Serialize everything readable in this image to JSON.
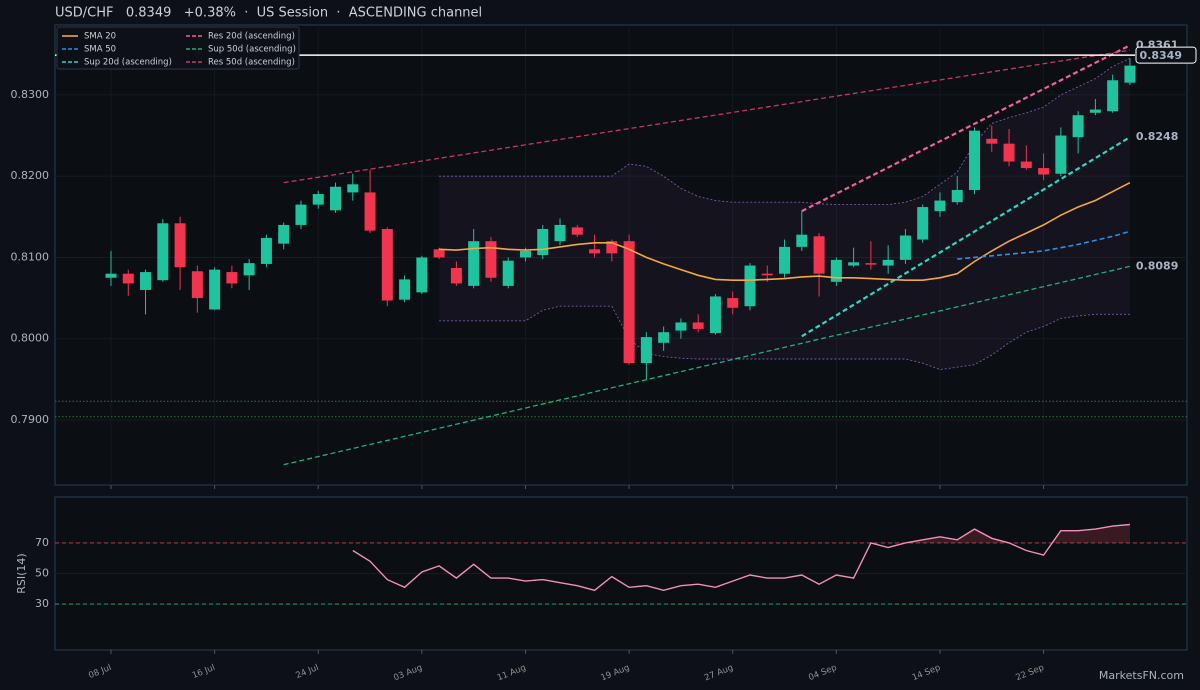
{
  "chart_data": [
    {
      "type": "candlestick",
      "title": "USD/CHF   0.8349   +0.38%  ·  US Session  ·  ASCENDING channel",
      "categories": [
        "08 Jul",
        null,
        null,
        null,
        null,
        null,
        "16 Jul",
        null,
        null,
        null,
        null,
        null,
        "24 Jul",
        null,
        null,
        null,
        null,
        null,
        "03 Aug",
        null,
        null,
        null,
        null,
        null,
        "11 Aug",
        null,
        null,
        null,
        null,
        null,
        "19 Aug",
        null,
        null,
        null,
        null,
        null,
        "27 Aug",
        null,
        null,
        null,
        null,
        null,
        "04 Sep",
        null,
        null,
        null,
        null,
        null,
        "14 Sep",
        null,
        null,
        null,
        null,
        null,
        "22 Sep",
        null,
        null,
        null,
        null,
        null
      ],
      "open": [
        0.8075,
        0.808,
        0.806,
        0.8072,
        0.8142,
        0.8083,
        0.8036,
        0.8082,
        0.8078,
        0.8092,
        0.8117,
        0.814,
        0.8165,
        0.8158,
        0.818,
        0.818,
        0.8135,
        0.8048,
        0.8057,
        0.811,
        0.8087,
        0.8065,
        0.812,
        0.8065,
        0.81,
        0.8103,
        0.812,
        0.8137,
        0.811,
        0.812,
        0.812,
        0.797,
        0.7995,
        0.801,
        0.802,
        0.8007,
        0.805,
        0.804,
        0.808,
        0.808,
        0.8113,
        0.8126,
        0.807,
        0.809,
        0.8093,
        0.809,
        0.8097,
        0.8122,
        0.8157,
        0.8168,
        0.8183,
        0.8246,
        0.824,
        0.8218,
        0.821,
        0.8203,
        0.8248,
        0.8278,
        0.828,
        0.8315
      ],
      "high": [
        0.8108,
        0.8085,
        0.8085,
        0.8147,
        0.815,
        0.809,
        0.8088,
        0.809,
        0.8098,
        0.8128,
        0.8143,
        0.817,
        0.8182,
        0.8192,
        0.8203,
        0.8208,
        0.8137,
        0.8078,
        0.8102,
        0.8112,
        0.8095,
        0.8135,
        0.8125,
        0.81,
        0.8112,
        0.814,
        0.8148,
        0.814,
        0.8128,
        0.8122,
        0.8128,
        0.8008,
        0.8015,
        0.8025,
        0.803,
        0.8055,
        0.8058,
        0.8093,
        0.809,
        0.8122,
        0.8157,
        0.813,
        0.81,
        0.8112,
        0.812,
        0.8115,
        0.8135,
        0.8165,
        0.818,
        0.82,
        0.826,
        0.8262,
        0.8258,
        0.8238,
        0.8228,
        0.826,
        0.828,
        0.8295,
        0.8325,
        0.8345
      ],
      "low": [
        0.8065,
        0.8053,
        0.803,
        0.807,
        0.806,
        0.8032,
        0.8035,
        0.8062,
        0.806,
        0.8088,
        0.811,
        0.8135,
        0.816,
        0.8155,
        0.817,
        0.813,
        0.804,
        0.8045,
        0.8055,
        0.8098,
        0.8065,
        0.8062,
        0.807,
        0.8062,
        0.8095,
        0.8098,
        0.8115,
        0.8125,
        0.81,
        0.8095,
        0.7968,
        0.795,
        0.7985,
        0.8,
        0.8008,
        0.8005,
        0.803,
        0.8035,
        0.807,
        0.8075,
        0.8108,
        0.8052,
        0.8065,
        0.8088,
        0.8085,
        0.808,
        0.8092,
        0.8118,
        0.815,
        0.8165,
        0.8178,
        0.823,
        0.8212,
        0.8208,
        0.8195,
        0.82,
        0.8228,
        0.8275,
        0.8278,
        0.8312
      ],
      "close": [
        0.808,
        0.8068,
        0.8082,
        0.8142,
        0.8088,
        0.805,
        0.8085,
        0.8068,
        0.8093,
        0.8124,
        0.814,
        0.8165,
        0.8178,
        0.8187,
        0.819,
        0.8133,
        0.8047,
        0.8073,
        0.81,
        0.81,
        0.8068,
        0.812,
        0.8075,
        0.8096,
        0.8108,
        0.8135,
        0.814,
        0.8128,
        0.8105,
        0.8105,
        0.797,
        0.8002,
        0.8008,
        0.802,
        0.8012,
        0.8052,
        0.8038,
        0.809,
        0.8078,
        0.8113,
        0.8128,
        0.808,
        0.8097,
        0.8094,
        0.8092,
        0.8097,
        0.8127,
        0.8162,
        0.817,
        0.8183,
        0.8256,
        0.824,
        0.8218,
        0.821,
        0.8202,
        0.825,
        0.8275,
        0.8282,
        0.8318,
        0.8336
      ],
      "up_color": "#1fc39e",
      "down_color": "#f2344f",
      "band": {
        "color": "#7a5aa8",
        "upper": [
          null,
          null,
          null,
          null,
          null,
          null,
          null,
          null,
          null,
          null,
          null,
          null,
          null,
          null,
          null,
          null,
          null,
          null,
          null,
          0.82,
          0.82,
          0.82,
          0.82,
          0.82,
          0.82,
          0.82,
          0.82,
          0.82,
          0.82,
          0.82,
          0.8215,
          0.8212,
          0.82,
          0.8185,
          0.8175,
          0.817,
          0.8168,
          0.8168,
          0.8168,
          0.8168,
          0.8168,
          0.8166,
          0.8165,
          0.8165,
          0.8165,
          0.8165,
          0.8168,
          0.8175,
          0.819,
          0.8205,
          0.824,
          0.8265,
          0.8272,
          0.8278,
          0.8285,
          0.83,
          0.831,
          0.832,
          0.8335,
          0.8345
        ],
        "lower": [
          null,
          null,
          null,
          null,
          null,
          null,
          null,
          null,
          null,
          null,
          null,
          null,
          null,
          null,
          null,
          null,
          null,
          null,
          null,
          0.8022,
          0.8022,
          0.8022,
          0.8022,
          0.8022,
          0.8022,
          0.8035,
          0.804,
          0.804,
          0.804,
          0.804,
          0.8,
          0.7982,
          0.7978,
          0.7976,
          0.7975,
          0.7975,
          0.7975,
          0.7975,
          0.7975,
          0.7975,
          0.7975,
          0.7975,
          0.7975,
          0.7975,
          0.7975,
          0.7975,
          0.7975,
          0.797,
          0.7962,
          0.7965,
          0.7968,
          0.798,
          0.7995,
          0.8008,
          0.8015,
          0.8025,
          0.8028,
          0.803,
          0.803,
          0.803
        ]
      },
      "series": [
        {
          "name": "SMA 20",
          "color": "#f5a742",
          "values": [
            null,
            null,
            null,
            null,
            null,
            null,
            null,
            null,
            null,
            null,
            null,
            null,
            null,
            null,
            null,
            null,
            null,
            null,
            null,
            0.811,
            0.8109,
            0.8111,
            0.8112,
            0.811,
            0.8109,
            0.811,
            0.8113,
            0.8116,
            0.8118,
            0.8118,
            0.811,
            0.81,
            0.8092,
            0.8085,
            0.8078,
            0.8073,
            0.8072,
            0.8072,
            0.8073,
            0.8074,
            0.8076,
            0.8077,
            0.8075,
            0.8075,
            0.8074,
            0.8073,
            0.8072,
            0.8072,
            0.8075,
            0.808,
            0.8095,
            0.8108,
            0.812,
            0.813,
            0.814,
            0.8152,
            0.8162,
            0.817,
            0.8181,
            0.8192
          ]
        },
        {
          "name": "SMA 50",
          "color": "#2d8fe6",
          "dash": true,
          "values": [
            null,
            null,
            null,
            null,
            null,
            null,
            null,
            null,
            null,
            null,
            null,
            null,
            null,
            null,
            null,
            null,
            null,
            null,
            null,
            null,
            null,
            null,
            null,
            null,
            null,
            null,
            null,
            null,
            null,
            null,
            null,
            null,
            null,
            null,
            null,
            null,
            null,
            null,
            null,
            null,
            null,
            null,
            null,
            null,
            null,
            null,
            null,
            null,
            null,
            0.8098,
            0.81,
            0.8102,
            0.8104,
            0.8106,
            0.8108,
            0.8112,
            0.8116,
            0.8121,
            0.8126,
            0.8132
          ]
        }
      ],
      "trendlines": [
        {
          "name": "Sup 20d (ascending)",
          "color": "#2fd6c0",
          "width": 2.2,
          "x": [
            40,
            59
          ],
          "values": [
            0.8003,
            0.8248
          ],
          "labeled": true
        },
        {
          "name": "Res 20d (ascending)",
          "color": "#f0609a",
          "width": 2.2,
          "x": [
            40,
            59
          ],
          "values": [
            0.8157,
            0.8361
          ],
          "labeled": true
        },
        {
          "name": "Sup 50d (ascending)",
          "color": "#22b07a",
          "width": 1.3,
          "x": [
            10,
            59
          ],
          "values": [
            0.7845,
            0.8089
          ],
          "labeled": true
        },
        {
          "name": "Res 50d (ascending)",
          "color": "#c23a5c",
          "width": 1.3,
          "x": [
            10,
            59
          ],
          "values": [
            0.8192,
            0.8355
          ],
          "labeled": false
        }
      ],
      "legend_order": [
        0,
        1,
        2,
        3,
        4,
        5
      ],
      "levels": [
        0.7923,
        0.7904
      ],
      "last_price": 0.8349,
      "ylim": [
        0.782,
        0.8386
      ],
      "yticks": [
        {
          "value": 0.79,
          "label": "0.7900"
        },
        {
          "value": 0.8,
          "label": "0.8000"
        },
        {
          "value": 0.81,
          "label": "0.8100"
        },
        {
          "value": 0.82,
          "label": "0.8200"
        },
        {
          "value": 0.83,
          "label": "0.8300"
        }
      ],
      "grid": true,
      "watermark": "MarketsFN.com"
    },
    {
      "type": "line",
      "ylabel": "RSI(14)",
      "series": [
        {
          "name": null,
          "color": "#f28fb8",
          "values": [
            null,
            null,
            null,
            null,
            null,
            null,
            null,
            null,
            null,
            null,
            null,
            null,
            null,
            null,
            65,
            58,
            46,
            41,
            51,
            55,
            47,
            56,
            47,
            47,
            45,
            46,
            44,
            42,
            39,
            48,
            41,
            42,
            39,
            42,
            43,
            41,
            45,
            49,
            47,
            47,
            49,
            43,
            49,
            47,
            70,
            67,
            70,
            72,
            74,
            72,
            79,
            73,
            70,
            65,
            62,
            78,
            78,
            79,
            81,
            82
          ]
        }
      ],
      "levels": [
        {
          "value": 70,
          "color": "#c0454f"
        },
        {
          "value": 30,
          "color": "#2aa88e"
        }
      ],
      "ylim": [
        0,
        100
      ],
      "yticks": [
        30,
        50,
        70
      ]
    }
  ]
}
